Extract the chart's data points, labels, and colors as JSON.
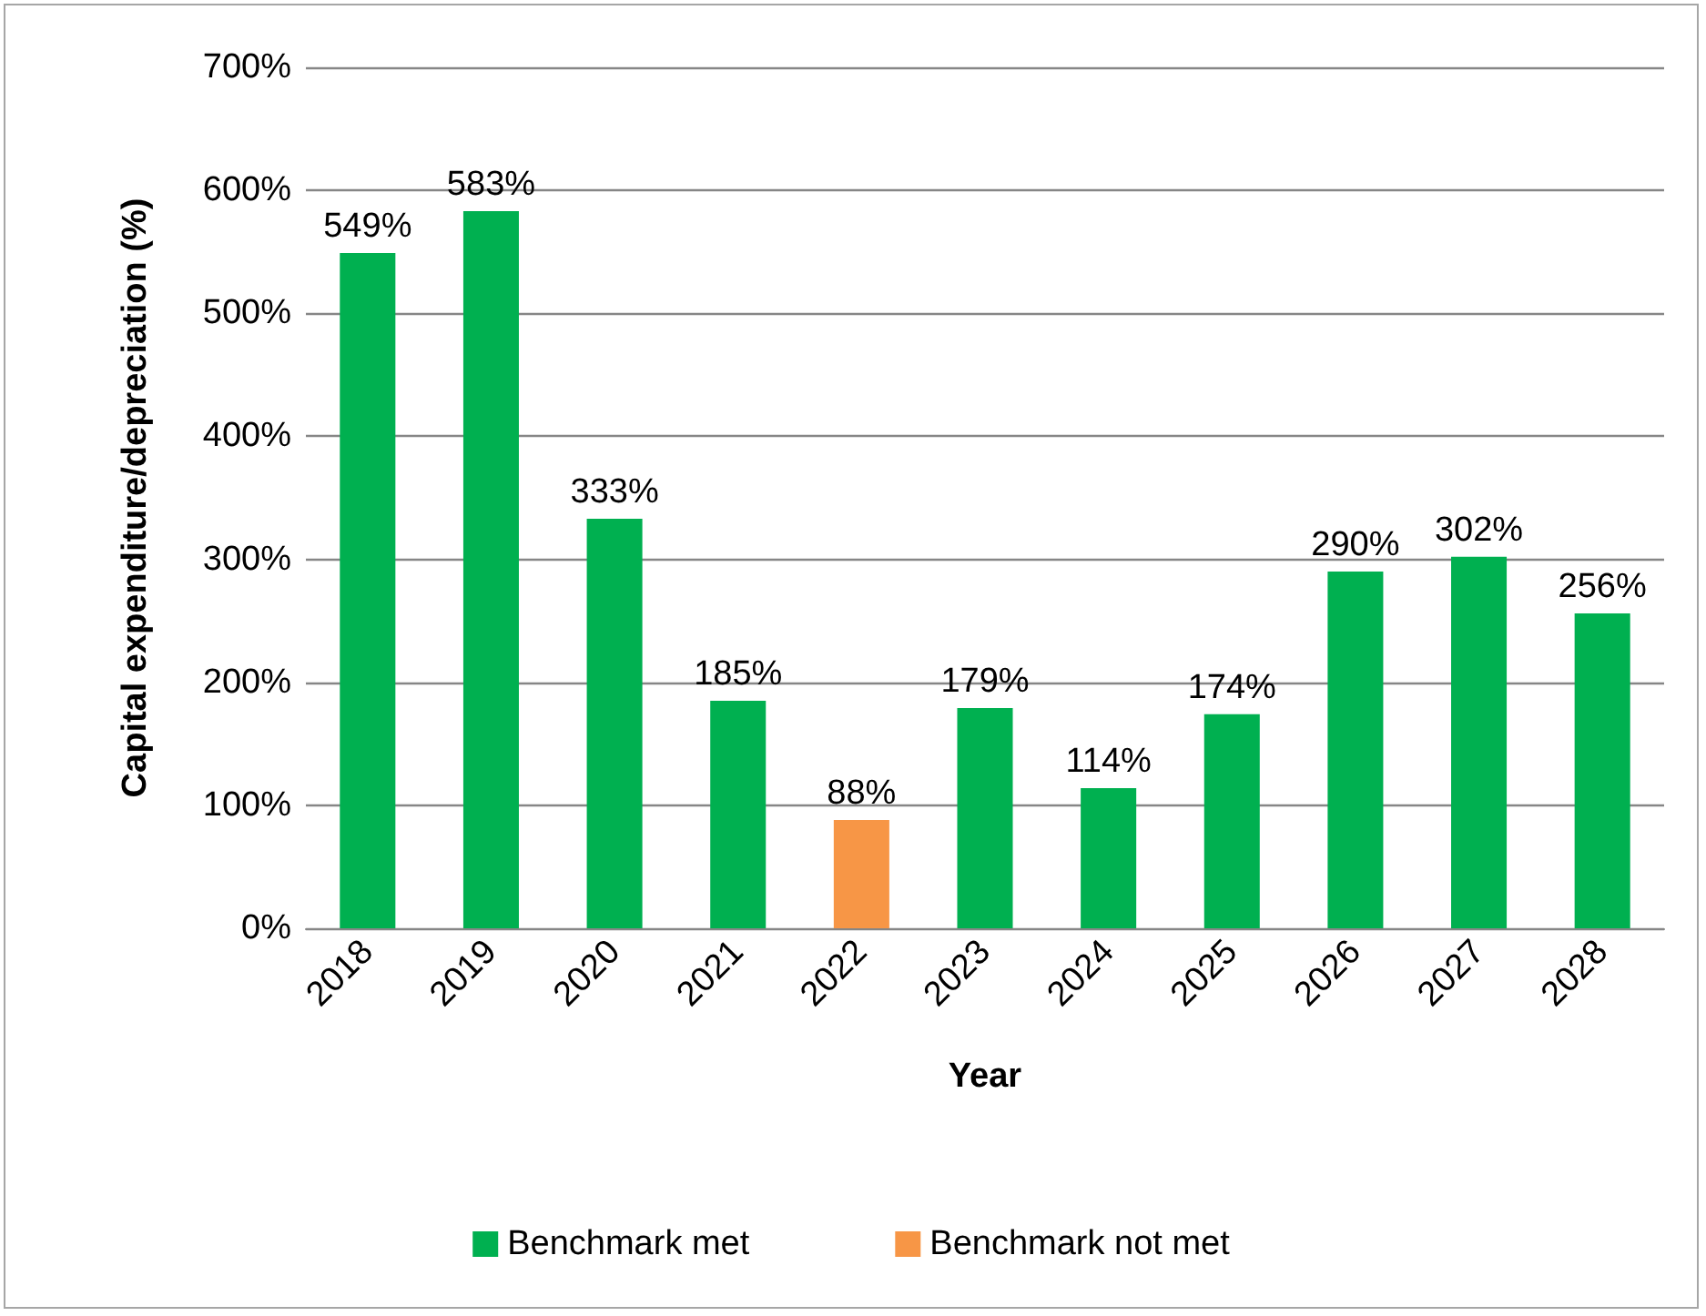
{
  "chart_data": {
    "type": "bar",
    "xlabel": "Year",
    "ylabel": "Capital expenditure/depreciation (%)",
    "categories": [
      "2018",
      "2019",
      "2020",
      "2021",
      "2022",
      "2023",
      "2024",
      "2025",
      "2026",
      "2027",
      "2028"
    ],
    "series": [
      {
        "name": "Benchmark met",
        "color": "#00b050",
        "values": [
          549,
          583,
          333,
          185,
          null,
          179,
          114,
          174,
          290,
          302,
          256
        ],
        "value_labels": [
          "549%",
          "583%",
          "333%",
          "185%",
          null,
          "179%",
          "114%",
          "174%",
          "290%",
          "302%",
          "256%"
        ]
      },
      {
        "name": "Benchmark not met",
        "color": "#f79646",
        "values": [
          null,
          null,
          null,
          null,
          88,
          null,
          null,
          null,
          null,
          null,
          null
        ],
        "value_labels": [
          null,
          null,
          null,
          null,
          "88%",
          null,
          null,
          null,
          null,
          null,
          null
        ]
      }
    ],
    "stacked": true,
    "ylim": [
      0,
      700
    ],
    "yticks": [
      {
        "value": 0,
        "label": "0%"
      },
      {
        "value": 100,
        "label": "100%"
      },
      {
        "value": 200,
        "label": "200%"
      },
      {
        "value": 300,
        "label": "300%"
      },
      {
        "value": 400,
        "label": "400%"
      },
      {
        "value": 500,
        "label": "500%"
      },
      {
        "value": 600,
        "label": "600%"
      },
      {
        "value": 700,
        "label": "700%"
      }
    ],
    "grid": "y",
    "legend": "bottom"
  }
}
